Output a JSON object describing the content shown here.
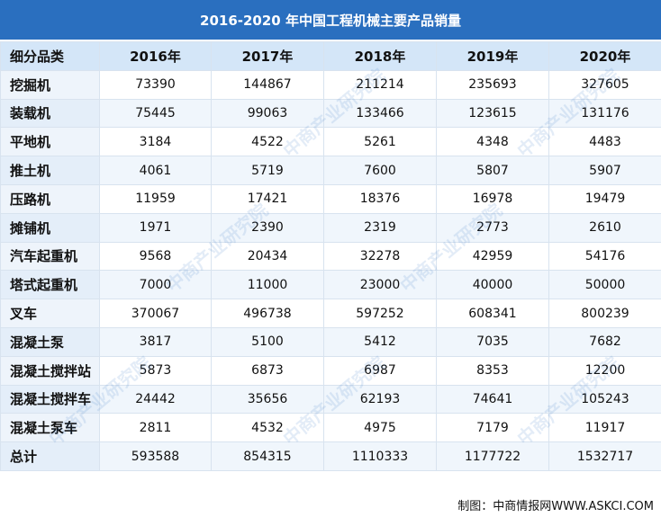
{
  "title": "2016-2020 年中国工程机械主要产品销量",
  "headers": [
    "细分品类",
    "2016年",
    "2017年",
    "2018年",
    "2019年",
    "2020年"
  ],
  "rows": [
    {
      "category": "挖掘机",
      "values": [
        "73390",
        "144867",
        "211214",
        "235693",
        "327605"
      ]
    },
    {
      "category": "装载机",
      "values": [
        "75445",
        "99063",
        "133466",
        "123615",
        "131176"
      ]
    },
    {
      "category": "平地机",
      "values": [
        "3184",
        "4522",
        "5261",
        "4348",
        "4483"
      ]
    },
    {
      "category": "推土机",
      "values": [
        "4061",
        "5719",
        "7600",
        "5807",
        "5907"
      ]
    },
    {
      "category": "压路机",
      "values": [
        "11959",
        "17421",
        "18376",
        "16978",
        "19479"
      ]
    },
    {
      "category": "摊铺机",
      "values": [
        "1971",
        "2390",
        "2319",
        "2773",
        "2610"
      ]
    },
    {
      "category": "汽车起重机",
      "values": [
        "9568",
        "20434",
        "32278",
        "42959",
        "54176"
      ]
    },
    {
      "category": "塔式起重机",
      "values": [
        "7000",
        "11000",
        "23000",
        "40000",
        "50000"
      ]
    },
    {
      "category": "叉车",
      "values": [
        "370067",
        "496738",
        "597252",
        "608341",
        "800239"
      ]
    },
    {
      "category": "混凝土泵",
      "values": [
        "3817",
        "5100",
        "5412",
        "7035",
        "7682"
      ]
    },
    {
      "category": "混凝土搅拌站",
      "values": [
        "5873",
        "6873",
        "6987",
        "8353",
        "12200"
      ]
    },
    {
      "category": "混凝土搅拌车",
      "values": [
        "24442",
        "35656",
        "62193",
        "74641",
        "105243"
      ]
    },
    {
      "category": "混凝土泵车",
      "values": [
        "2811",
        "4532",
        "4975",
        "7179",
        "11917"
      ]
    },
    {
      "category": "总计",
      "values": [
        "593588",
        "854315",
        "1110333",
        "1177722",
        "1532717"
      ]
    }
  ],
  "source": "制图：中商情报网WWW.ASKCI.COM",
  "watermark": "中商产业研究院"
}
